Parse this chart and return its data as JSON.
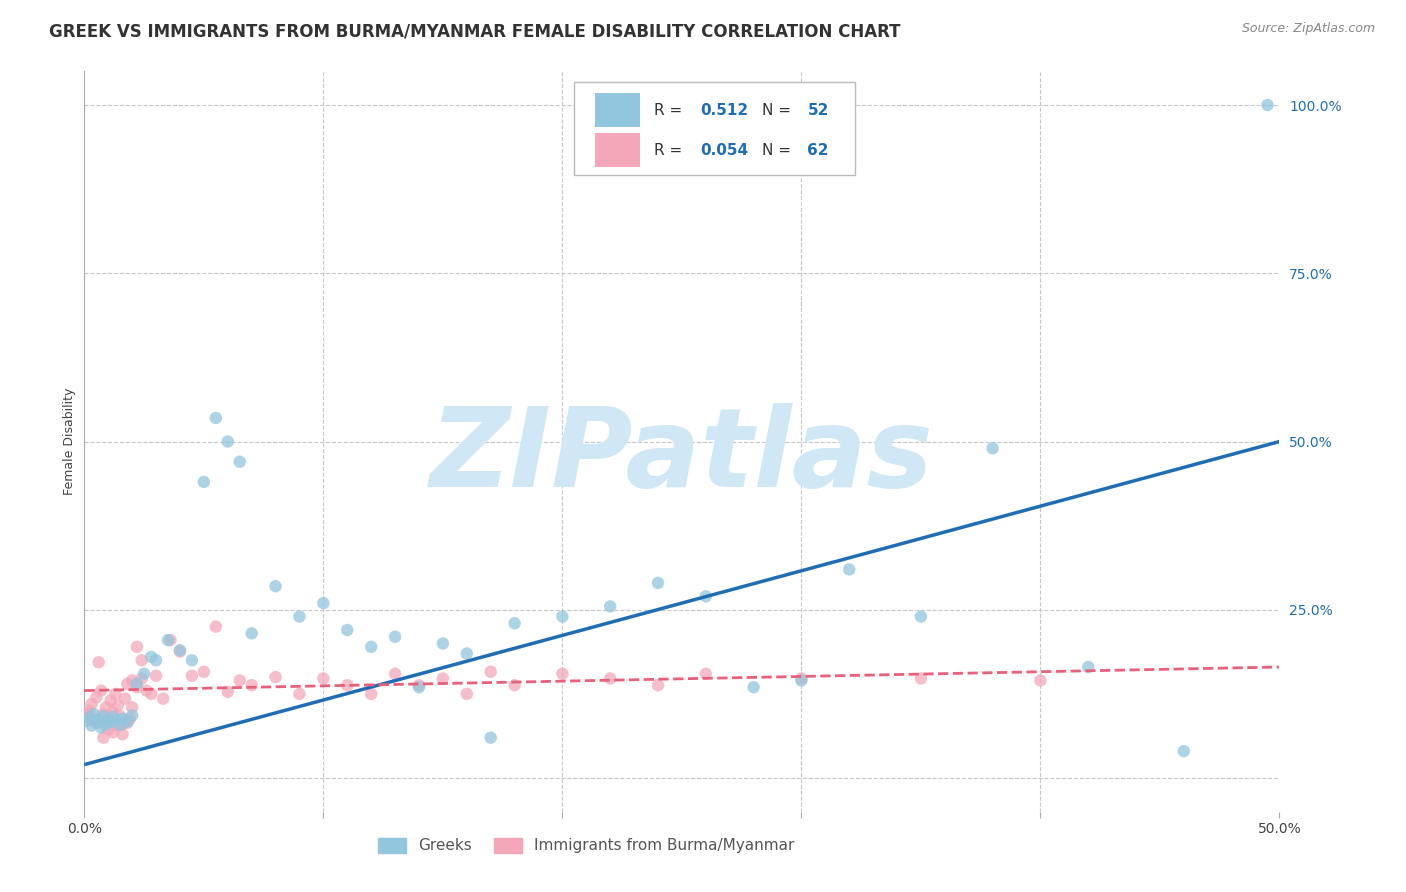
{
  "title": "GREEK VS IMMIGRANTS FROM BURMA/MYANMAR FEMALE DISABILITY CORRELATION CHART",
  "source": "Source: ZipAtlas.com",
  "ylabel": "Female Disability",
  "xlim": [
    0.0,
    0.5
  ],
  "ylim": [
    -0.05,
    1.05
  ],
  "xticks": [
    0.0,
    0.1,
    0.2,
    0.3,
    0.4,
    0.5
  ],
  "xticklabels": [
    "0.0%",
    "",
    "",
    "",
    "",
    "50.0%"
  ],
  "ytick_right": [
    0.0,
    0.25,
    0.5,
    0.75,
    1.0
  ],
  "yticklabels_right": [
    "",
    "25.0%",
    "50.0%",
    "75.0%",
    "100.0%"
  ],
  "background_color": "#ffffff",
  "grid_color": "#c8c8c8",
  "watermark_text": "ZIPatlas",
  "watermark_color": "#d0e8f5",
  "color_blue": "#92c5de",
  "color_pink": "#f4a7b9",
  "color_blue_line": "#1f6eb5",
  "color_pink_line": "#e8607a",
  "legend_label1": "Greeks",
  "legend_label2": "Immigrants from Burma/Myanmar",
  "blue_scatter_x": [
    0.001,
    0.002,
    0.003,
    0.004,
    0.005,
    0.006,
    0.007,
    0.008,
    0.009,
    0.01,
    0.011,
    0.012,
    0.014,
    0.015,
    0.016,
    0.018,
    0.02,
    0.022,
    0.025,
    0.028,
    0.03,
    0.035,
    0.04,
    0.045,
    0.05,
    0.06,
    0.07,
    0.08,
    0.09,
    0.1,
    0.11,
    0.12,
    0.13,
    0.14,
    0.15,
    0.16,
    0.17,
    0.18,
    0.2,
    0.22,
    0.24,
    0.26,
    0.28,
    0.3,
    0.32,
    0.35,
    0.38,
    0.42,
    0.46,
    0.495,
    0.055,
    0.065
  ],
  "blue_scatter_y": [
    0.085,
    0.09,
    0.078,
    0.095,
    0.082,
    0.088,
    0.075,
    0.092,
    0.08,
    0.087,
    0.083,
    0.091,
    0.086,
    0.079,
    0.088,
    0.084,
    0.093,
    0.14,
    0.155,
    0.18,
    0.175,
    0.205,
    0.19,
    0.175,
    0.44,
    0.5,
    0.215,
    0.285,
    0.24,
    0.26,
    0.22,
    0.195,
    0.21,
    0.135,
    0.2,
    0.185,
    0.06,
    0.23,
    0.24,
    0.255,
    0.29,
    0.27,
    0.135,
    0.145,
    0.31,
    0.24,
    0.49,
    0.165,
    0.04,
    1.0,
    0.535,
    0.47
  ],
  "pink_scatter_x": [
    0.001,
    0.002,
    0.003,
    0.004,
    0.005,
    0.006,
    0.007,
    0.008,
    0.009,
    0.01,
    0.011,
    0.012,
    0.013,
    0.014,
    0.015,
    0.016,
    0.017,
    0.018,
    0.019,
    0.02,
    0.022,
    0.024,
    0.026,
    0.028,
    0.03,
    0.033,
    0.036,
    0.04,
    0.045,
    0.05,
    0.055,
    0.06,
    0.065,
    0.07,
    0.08,
    0.09,
    0.1,
    0.11,
    0.12,
    0.13,
    0.14,
    0.15,
    0.16,
    0.17,
    0.18,
    0.2,
    0.22,
    0.24,
    0.26,
    0.3,
    0.35,
    0.4,
    0.006,
    0.008,
    0.01,
    0.012,
    0.014,
    0.016,
    0.018,
    0.02,
    0.022,
    0.024
  ],
  "pink_scatter_y": [
    0.095,
    0.1,
    0.11,
    0.088,
    0.12,
    0.082,
    0.13,
    0.095,
    0.105,
    0.088,
    0.115,
    0.098,
    0.125,
    0.108,
    0.092,
    0.08,
    0.118,
    0.14,
    0.088,
    0.105,
    0.195,
    0.175,
    0.13,
    0.125,
    0.152,
    0.118,
    0.205,
    0.188,
    0.152,
    0.158,
    0.225,
    0.128,
    0.145,
    0.138,
    0.15,
    0.125,
    0.148,
    0.138,
    0.125,
    0.155,
    0.138,
    0.148,
    0.125,
    0.158,
    0.138,
    0.155,
    0.148,
    0.138,
    0.155,
    0.148,
    0.148,
    0.145,
    0.172,
    0.06,
    0.072,
    0.068,
    0.078,
    0.065,
    0.082,
    0.145,
    0.135,
    0.148
  ],
  "blue_line_x": [
    0.0,
    0.5
  ],
  "blue_line_y": [
    0.02,
    0.5
  ],
  "pink_line_x": [
    0.0,
    0.5
  ],
  "pink_line_y": [
    0.13,
    0.165
  ],
  "title_fontsize": 12,
  "source_fontsize": 9,
  "axis_label_fontsize": 9,
  "tick_fontsize": 10,
  "marker_size": 80
}
